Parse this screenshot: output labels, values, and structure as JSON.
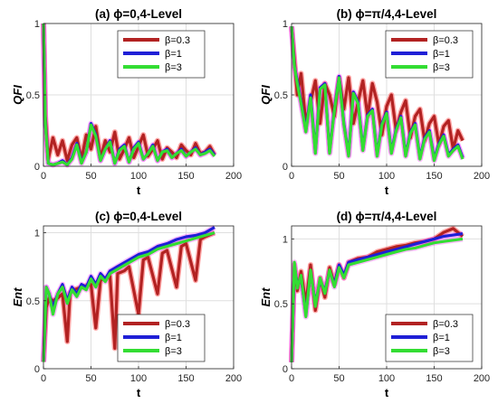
{
  "figure_colors": {
    "red_series": "#b22222",
    "blue_series": "#1f1fd6",
    "green_series": "#33dd33",
    "magenta_halo": "#ff33ff",
    "red_halo": "#ff0000"
  },
  "chart_data": [
    {
      "type": "line",
      "title": "(a) ϕ=0,4-Level",
      "xlabel": "t",
      "ylabel": "QFI",
      "xlim": [
        0,
        200
      ],
      "ylim": [
        0,
        1
      ],
      "xticks": [
        "0",
        "50",
        "100",
        "150",
        "200"
      ],
      "yticks": [
        "0",
        "0.5",
        "1"
      ],
      "grid": true,
      "legend_position": "top-right",
      "series": [
        {
          "name": "β=0.3",
          "x": [
            0,
            2,
            5,
            10,
            15,
            20,
            25,
            30,
            35,
            40,
            45,
            50,
            55,
            60,
            65,
            70,
            75,
            80,
            85,
            90,
            95,
            100,
            105,
            110,
            115,
            120,
            125,
            130,
            135,
            140,
            145,
            150,
            155,
            160,
            165,
            170,
            175,
            180
          ],
          "values": [
            1.0,
            0.35,
            0.05,
            0.2,
            0.08,
            0.18,
            0.04,
            0.15,
            0.2,
            0.05,
            0.22,
            0.12,
            0.28,
            0.06,
            0.18,
            0.1,
            0.24,
            0.05,
            0.12,
            0.2,
            0.06,
            0.14,
            0.22,
            0.07,
            0.12,
            0.18,
            0.05,
            0.13,
            0.1,
            0.06,
            0.15,
            0.11,
            0.08,
            0.16,
            0.09,
            0.1,
            0.14,
            0.08
          ]
        },
        {
          "name": "β=1",
          "x": [
            0,
            2,
            5,
            10,
            15,
            20,
            25,
            30,
            35,
            40,
            45,
            50,
            55,
            60,
            65,
            70,
            75,
            80,
            85,
            90,
            95,
            100,
            105,
            110,
            115,
            120,
            125,
            130,
            135,
            140,
            145,
            150,
            155,
            160,
            165,
            170,
            175,
            180
          ],
          "values": [
            1.0,
            0.3,
            0.02,
            0.01,
            0.02,
            0.04,
            0.01,
            0.06,
            0.16,
            0.03,
            0.1,
            0.3,
            0.22,
            0.04,
            0.12,
            0.18,
            0.02,
            0.12,
            0.15,
            0.03,
            0.13,
            0.17,
            0.05,
            0.09,
            0.15,
            0.04,
            0.1,
            0.12,
            0.06,
            0.09,
            0.12,
            0.07,
            0.1,
            0.13,
            0.08,
            0.1,
            0.12,
            0.08
          ]
        },
        {
          "name": "β=3",
          "x": [
            0,
            2,
            5,
            10,
            15,
            20,
            25,
            30,
            35,
            40,
            45,
            50,
            55,
            60,
            65,
            70,
            75,
            80,
            85,
            90,
            95,
            100,
            105,
            110,
            115,
            120,
            125,
            130,
            135,
            140,
            145,
            150,
            155,
            160,
            165,
            170,
            175,
            180
          ],
          "values": [
            1.0,
            0.3,
            0.02,
            0.01,
            0.02,
            0.03,
            0.01,
            0.05,
            0.15,
            0.02,
            0.1,
            0.29,
            0.21,
            0.04,
            0.12,
            0.17,
            0.02,
            0.11,
            0.14,
            0.03,
            0.12,
            0.16,
            0.05,
            0.09,
            0.14,
            0.04,
            0.1,
            0.11,
            0.06,
            0.09,
            0.11,
            0.07,
            0.1,
            0.12,
            0.08,
            0.09,
            0.11,
            0.07
          ]
        }
      ]
    },
    {
      "type": "line",
      "title": "(b) ϕ=π/4,4-Level",
      "xlabel": "t",
      "ylabel": "QFI",
      "xlim": [
        0,
        200
      ],
      "ylim": [
        0,
        1
      ],
      "xticks": [
        "0",
        "50",
        "100",
        "150",
        "200"
      ],
      "yticks": [
        "0",
        "0.5",
        "1"
      ],
      "grid": true,
      "legend_position": "top-right",
      "series": [
        {
          "name": "β=0.3",
          "x": [
            0,
            3,
            6,
            10,
            15,
            20,
            25,
            30,
            35,
            40,
            45,
            50,
            55,
            60,
            65,
            70,
            75,
            80,
            85,
            90,
            95,
            100,
            105,
            110,
            115,
            120,
            125,
            130,
            135,
            140,
            145,
            150,
            155,
            160,
            165,
            170,
            175,
            180
          ],
          "values": [
            0.98,
            0.75,
            0.5,
            0.65,
            0.3,
            0.45,
            0.6,
            0.3,
            0.58,
            0.5,
            0.35,
            0.62,
            0.4,
            0.62,
            0.3,
            0.45,
            0.6,
            0.35,
            0.58,
            0.45,
            0.22,
            0.42,
            0.5,
            0.25,
            0.38,
            0.46,
            0.2,
            0.35,
            0.4,
            0.18,
            0.3,
            0.35,
            0.15,
            0.28,
            0.32,
            0.12,
            0.25,
            0.18
          ]
        },
        {
          "name": "β=1",
          "x": [
            0,
            3,
            6,
            10,
            15,
            20,
            25,
            30,
            35,
            40,
            45,
            50,
            55,
            60,
            65,
            70,
            75,
            80,
            85,
            90,
            95,
            100,
            105,
            110,
            115,
            120,
            125,
            130,
            135,
            140,
            145,
            150,
            155,
            160,
            165,
            170,
            175,
            180
          ],
          "values": [
            0.98,
            0.7,
            0.6,
            0.45,
            0.25,
            0.5,
            0.1,
            0.55,
            0.58,
            0.1,
            0.4,
            0.63,
            0.3,
            0.08,
            0.52,
            0.45,
            0.12,
            0.36,
            0.4,
            0.08,
            0.3,
            0.38,
            0.1,
            0.26,
            0.35,
            0.08,
            0.24,
            0.3,
            0.06,
            0.2,
            0.25,
            0.05,
            0.16,
            0.22,
            0.08,
            0.12,
            0.15,
            0.06
          ]
        },
        {
          "name": "β=3",
          "x": [
            0,
            3,
            6,
            10,
            15,
            20,
            25,
            30,
            35,
            40,
            45,
            50,
            55,
            60,
            65,
            70,
            75,
            80,
            85,
            90,
            95,
            100,
            105,
            110,
            115,
            120,
            125,
            130,
            135,
            140,
            145,
            150,
            155,
            160,
            165,
            170,
            175,
            180
          ],
          "values": [
            0.98,
            0.7,
            0.58,
            0.44,
            0.24,
            0.48,
            0.09,
            0.54,
            0.57,
            0.09,
            0.39,
            0.62,
            0.29,
            0.07,
            0.51,
            0.44,
            0.11,
            0.35,
            0.39,
            0.07,
            0.29,
            0.37,
            0.09,
            0.25,
            0.34,
            0.07,
            0.23,
            0.29,
            0.05,
            0.19,
            0.24,
            0.04,
            0.15,
            0.21,
            0.07,
            0.11,
            0.14,
            0.05
          ]
        }
      ]
    },
    {
      "type": "line",
      "title": "(c) ϕ=0,4-Level",
      "xlabel": "t",
      "ylabel": "Ent",
      "xlim": [
        0,
        200
      ],
      "ylim": [
        0,
        1.05
      ],
      "xticks": [
        "0",
        "50",
        "100",
        "150",
        "200"
      ],
      "yticks": [
        "0",
        "0.5",
        "1"
      ],
      "grid": true,
      "legend_position": "bottom-right",
      "series": [
        {
          "name": "β=0.3",
          "x": [
            0,
            3,
            6,
            10,
            15,
            20,
            25,
            28,
            32,
            40,
            50,
            55,
            60,
            70,
            75,
            78,
            85,
            90,
            100,
            105,
            110,
            120,
            125,
            130,
            140,
            145,
            150,
            160,
            165,
            170,
            180
          ],
          "values": [
            0.05,
            0.45,
            0.52,
            0.5,
            0.52,
            0.55,
            0.2,
            0.56,
            0.58,
            0.6,
            0.62,
            0.3,
            0.65,
            0.68,
            0.15,
            0.7,
            0.72,
            0.75,
            0.4,
            0.8,
            0.82,
            0.55,
            0.85,
            0.87,
            0.6,
            0.9,
            0.92,
            0.65,
            0.95,
            0.97,
            1.0
          ]
        },
        {
          "name": "β=1",
          "x": [
            0,
            3,
            6,
            10,
            15,
            20,
            25,
            30,
            35,
            40,
            45,
            50,
            55,
            60,
            65,
            70,
            80,
            90,
            100,
            110,
            120,
            130,
            140,
            150,
            160,
            170,
            180
          ],
          "values": [
            0.05,
            0.6,
            0.55,
            0.45,
            0.55,
            0.62,
            0.5,
            0.6,
            0.55,
            0.62,
            0.6,
            0.68,
            0.62,
            0.7,
            0.66,
            0.72,
            0.76,
            0.8,
            0.84,
            0.86,
            0.9,
            0.92,
            0.95,
            0.97,
            0.98,
            1.0,
            1.04
          ]
        },
        {
          "name": "β=3",
          "x": [
            0,
            3,
            6,
            10,
            15,
            20,
            25,
            30,
            35,
            40,
            45,
            50,
            55,
            60,
            65,
            70,
            80,
            90,
            100,
            110,
            120,
            130,
            140,
            150,
            160,
            170,
            180
          ],
          "values": [
            0.05,
            0.6,
            0.55,
            0.4,
            0.55,
            0.6,
            0.48,
            0.58,
            0.53,
            0.6,
            0.58,
            0.66,
            0.6,
            0.68,
            0.64,
            0.7,
            0.74,
            0.78,
            0.82,
            0.84,
            0.88,
            0.9,
            0.92,
            0.94,
            0.96,
            0.98,
            1.0
          ]
        }
      ]
    },
    {
      "type": "line",
      "title": "(d) ϕ=π/4,4-Level",
      "xlabel": "t",
      "ylabel": "Ent",
      "xlim": [
        0,
        200
      ],
      "ylim": [
        0,
        1.1
      ],
      "xticks": [
        "0",
        "50",
        "100",
        "150",
        "200"
      ],
      "yticks": [
        "0",
        "0.5",
        "1"
      ],
      "grid": true,
      "legend_position": "bottom-right",
      "series": [
        {
          "name": "β=0.3",
          "x": [
            0,
            3,
            6,
            10,
            15,
            20,
            25,
            30,
            35,
            40,
            45,
            50,
            55,
            60,
            70,
            80,
            90,
            100,
            110,
            120,
            130,
            140,
            150,
            160,
            170,
            180
          ],
          "values": [
            0.05,
            0.8,
            0.6,
            0.75,
            0.5,
            0.8,
            0.45,
            0.7,
            0.55,
            0.78,
            0.65,
            0.8,
            0.7,
            0.82,
            0.85,
            0.86,
            0.9,
            0.92,
            0.94,
            0.95,
            0.97,
            0.98,
            1.0,
            1.05,
            1.08,
            1.02
          ]
        },
        {
          "name": "β=1",
          "x": [
            0,
            3,
            6,
            10,
            15,
            20,
            25,
            30,
            35,
            40,
            45,
            50,
            55,
            60,
            70,
            80,
            90,
            100,
            110,
            120,
            130,
            140,
            150,
            160,
            170,
            180
          ],
          "values": [
            0.05,
            0.8,
            0.65,
            0.7,
            0.42,
            0.75,
            0.5,
            0.68,
            0.6,
            0.75,
            0.65,
            0.8,
            0.72,
            0.82,
            0.84,
            0.86,
            0.88,
            0.9,
            0.92,
            0.94,
            0.96,
            0.98,
            1.0,
            1.02,
            1.03,
            1.04
          ]
        },
        {
          "name": "β=3",
          "x": [
            0,
            3,
            6,
            10,
            15,
            20,
            25,
            30,
            35,
            40,
            45,
            50,
            55,
            60,
            70,
            80,
            90,
            100,
            110,
            120,
            130,
            140,
            150,
            160,
            170,
            180
          ],
          "values": [
            0.05,
            0.82,
            0.62,
            0.72,
            0.4,
            0.76,
            0.48,
            0.7,
            0.58,
            0.76,
            0.63,
            0.78,
            0.7,
            0.8,
            0.82,
            0.84,
            0.86,
            0.88,
            0.9,
            0.92,
            0.93,
            0.95,
            0.97,
            0.98,
            0.99,
            1.0
          ]
        }
      ]
    }
  ]
}
